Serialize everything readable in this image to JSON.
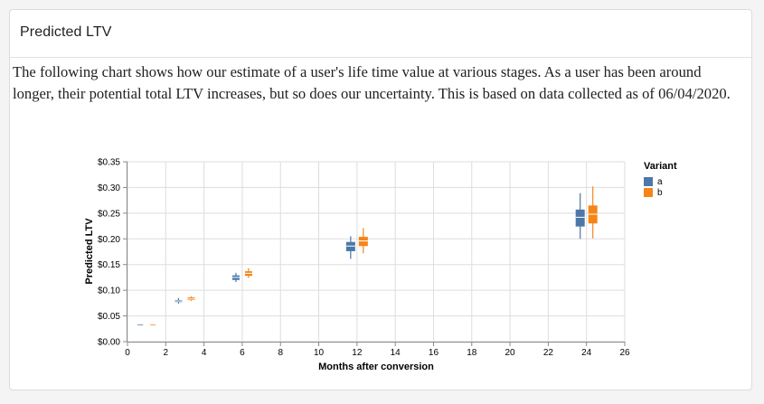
{
  "card": {
    "title": "Predicted LTV",
    "description": "The following chart shows how our estimate of a user's life time value at various stages. As a user has been around longer, their potential total LTV increases, but so does our uncertainty. This is based on data collected as of 06/04/2020."
  },
  "chart_data": {
    "type": "boxplot",
    "title": "",
    "xlabel": "Months after conversion",
    "ylabel": "Predicted LTV",
    "xlim": [
      0,
      26
    ],
    "ylim": [
      0,
      0.35
    ],
    "x_ticks": [
      "0",
      "2",
      "4",
      "6",
      "8",
      "10",
      "12",
      "14",
      "16",
      "18",
      "20",
      "22",
      "24",
      "26"
    ],
    "y_ticks": [
      "$0.00",
      "$0.05",
      "$0.10",
      "$0.15",
      "$0.20",
      "$0.25",
      "$0.30",
      "$0.35"
    ],
    "grid": true,
    "legend": {
      "title": "Variant",
      "position": "top-right"
    },
    "series": [
      {
        "name": "a",
        "color": "#4c78a8",
        "points": [
          {
            "month": 1,
            "min": 0.033,
            "q1": 0.0335,
            "median": 0.034,
            "q3": 0.0345,
            "max": 0.035
          },
          {
            "month": 3,
            "min": 0.074,
            "q1": 0.077,
            "median": 0.079,
            "q3": 0.081,
            "max": 0.085
          },
          {
            "month": 6,
            "min": 0.116,
            "q1": 0.12,
            "median": 0.125,
            "q3": 0.129,
            "max": 0.134
          },
          {
            "month": 12,
            "min": 0.161,
            "q1": 0.176,
            "median": 0.186,
            "q3": 0.194,
            "max": 0.205
          },
          {
            "month": 24,
            "min": 0.2,
            "q1": 0.224,
            "median": 0.242,
            "q3": 0.257,
            "max": 0.289
          }
        ]
      },
      {
        "name": "b",
        "color": "#f58518",
        "points": [
          {
            "month": 1,
            "min": 0.033,
            "q1": 0.0335,
            "median": 0.034,
            "q3": 0.0345,
            "max": 0.035
          },
          {
            "month": 3,
            "min": 0.079,
            "q1": 0.081,
            "median": 0.083,
            "q3": 0.086,
            "max": 0.088
          },
          {
            "month": 6,
            "min": 0.124,
            "q1": 0.128,
            "median": 0.133,
            "q3": 0.137,
            "max": 0.143
          },
          {
            "month": 12,
            "min": 0.172,
            "q1": 0.186,
            "median": 0.196,
            "q3": 0.204,
            "max": 0.221
          },
          {
            "month": 24,
            "min": 0.201,
            "q1": 0.23,
            "median": 0.248,
            "q3": 0.265,
            "max": 0.302
          }
        ]
      }
    ]
  }
}
